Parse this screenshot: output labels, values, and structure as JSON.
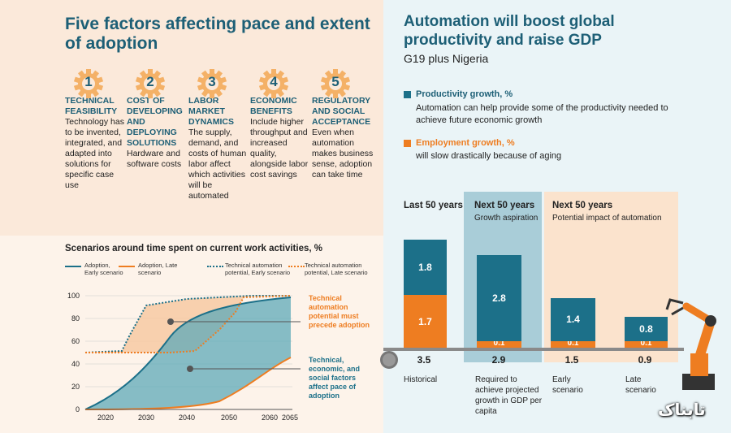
{
  "left_title": "Five factors affecting pace and extent of adoption",
  "factors": [
    {
      "num": "1",
      "title": "TECHNICAL FEASIBILITY",
      "desc": "Technology has to be invented, integrated, and adapted into solutions for specific case use"
    },
    {
      "num": "2",
      "title": "COST OF DEVELOPING AND DEPLOYING SOLUTIONS",
      "desc": "Hardware and software costs"
    },
    {
      "num": "3",
      "title": "LABOR MARKET DYNAMICS",
      "desc": "The supply, demand, and costs of human labor affect which activities will be automated"
    },
    {
      "num": "4",
      "title": "ECONOMIC BENEFITS",
      "desc": "Include higher throughput and increased quality, alongside labor cost savings"
    },
    {
      "num": "5",
      "title": "REGULATORY AND SOCIAL ACCEPTANCE",
      "desc": "Even when automation makes business sense, adoption can take time"
    }
  ],
  "scenario_chart": {
    "title": "Scenarios around time spent on current work activities, %",
    "legend": [
      "Adoption, Early scenario",
      "Adoption, Late scenario",
      "Technical automation potential, Early scenario",
      "Technical automation potential, Late scenario"
    ],
    "y_ticks": [
      "100",
      "80",
      "60",
      "40",
      "20",
      "0"
    ],
    "x_ticks": [
      "2020",
      "2030",
      "2040",
      "2050",
      "2060",
      "2065"
    ],
    "annotation_top": "Technical automation potential must precede adoption",
    "annotation_bottom": "Technical, economic, and social factors affect pace of adoption"
  },
  "chart_data": {
    "type": "bar",
    "categories": [
      "Historical",
      "Required to achieve projected growth in GDP per capita",
      "Early scenario",
      "Late scenario"
    ],
    "series": [
      {
        "name": "Productivity growth, %",
        "values": [
          1.8,
          2.8,
          1.4,
          0.8
        ]
      },
      {
        "name": "Employment growth, %",
        "values": [
          1.7,
          0.1,
          0.1,
          0.1
        ]
      }
    ],
    "totals": [
      "3.5",
      "2.9",
      "1.5",
      "0.9"
    ]
  },
  "right_title": "Automation will boost global productivity and raise GDP",
  "right_subtitle": "G19 plus Nigeria",
  "legend_productivity": {
    "title": "Productivity growth, %",
    "desc": "Automation can help provide some of the productivity needed to achieve future economic growth"
  },
  "legend_employment": {
    "title": "Employment growth, %",
    "desc": "will slow drastically because of aging"
  },
  "periods": {
    "last": "Last 50 years",
    "next1": "Next 50 years",
    "next1_sub": "Growth aspiration",
    "next2": "Next 50 years",
    "next2_sub": "Potential impact of automation"
  },
  "xlabels": [
    "Historical",
    "Required to achieve projected growth in GDP per capita",
    "Early scenario",
    "Late scenario"
  ],
  "colors": {
    "teal": "#1c7089",
    "orange": "#ee7d21",
    "gear": "#f4b167"
  },
  "watermark": "تابناک"
}
